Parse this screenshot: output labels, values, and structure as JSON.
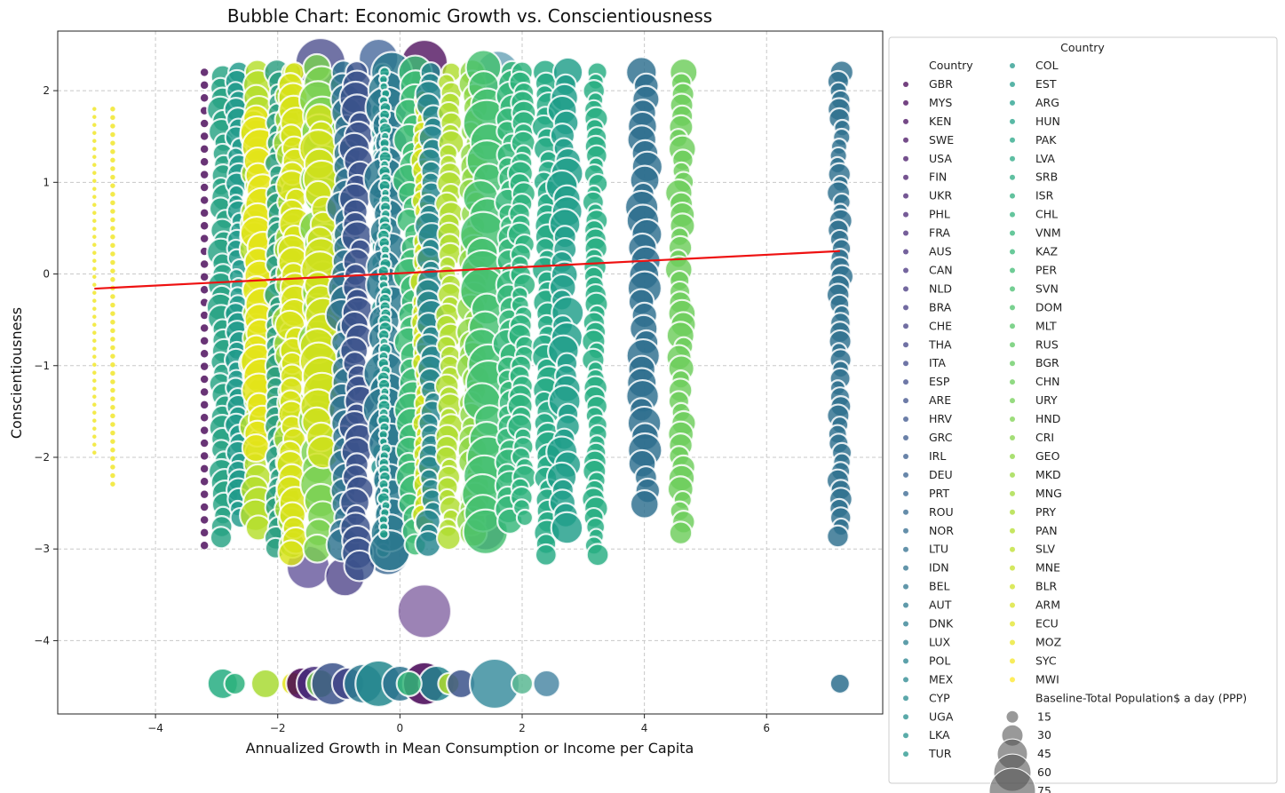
{
  "chart_data": {
    "type": "scatter",
    "title": "Bubble Chart: Economic Growth vs. Conscientiousness",
    "xlabel": "Annualized Growth in Mean Consumption or Income per Capita",
    "ylabel": "Conscientiousness",
    "xlim": [
      -5.6,
      7.9
    ],
    "ylim": [
      -4.8,
      2.65
    ],
    "xticks": [
      -4,
      -2,
      0,
      2,
      4,
      6
    ],
    "yticks": [
      -4,
      -3,
      -2,
      -1,
      0,
      1,
      2
    ],
    "grid": true,
    "colormap": "viridis",
    "trend_line": {
      "color": "#ee1111",
      "x": [
        -5.0,
        7.2
      ],
      "y": [
        -0.16,
        0.25
      ]
    },
    "legend": {
      "title": "Country",
      "placement": "outside-right",
      "hue_title": "Country",
      "countries": [
        "GBR",
        "MYS",
        "KEN",
        "SWE",
        "USA",
        "FIN",
        "UKR",
        "PHL",
        "FRA",
        "AUS",
        "CAN",
        "NLD",
        "BRA",
        "CHE",
        "THA",
        "ITA",
        "ESP",
        "ARE",
        "HRV",
        "GRC",
        "IRL",
        "DEU",
        "PRT",
        "ROU",
        "NOR",
        "LTU",
        "IDN",
        "BEL",
        "AUT",
        "DNK",
        "LUX",
        "POL",
        "MEX",
        "CYP",
        "UGA",
        "LKA",
        "TUR",
        "COL",
        "EST",
        "ARG",
        "HUN",
        "PAK",
        "LVA",
        "SRB",
        "ISR",
        "CHL",
        "VNM",
        "KAZ",
        "PER",
        "SVN",
        "DOM",
        "MLT",
        "RUS",
        "BGR",
        "CHN",
        "URY",
        "HND",
        "CRI",
        "GEO",
        "MKD",
        "MNG",
        "PRY",
        "PAN",
        "SLV",
        "MNE",
        "BLR",
        "ARM",
        "ECU",
        "MOZ",
        "SYC",
        "MWI"
      ],
      "size_title": "Baseline-Total Population$ a day (PPP)",
      "sizes": [
        "15",
        "30",
        "45",
        "60",
        "75"
      ]
    },
    "bubble_columns": [
      {
        "x": -5.0,
        "color": "#f0e51e",
        "ymin": -1.95,
        "ymax": 1.8,
        "r": 2.5,
        "ring": false
      },
      {
        "x": -4.7,
        "color": "#f0e51e",
        "ymin": -2.35,
        "ymax": 1.8,
        "r": 3,
        "ring": false
      },
      {
        "x": -3.2,
        "color": "#440154",
        "ymin": -3.0,
        "ymax": 2.2,
        "r": 4.5,
        "ring": false
      },
      {
        "x": -2.9,
        "color": "#26a282",
        "ymin": -2.9,
        "ymax": 2.15,
        "r": 13,
        "ring": true
      },
      {
        "x": -2.65,
        "color": "#1f9a8a",
        "ymin": -2.7,
        "ymax": 2.2,
        "r": 11,
        "ring": true
      },
      {
        "x": -2.35,
        "color": "#b5de2b",
        "ymin": -2.8,
        "ymax": 2.2,
        "r": 15,
        "ring": true
      },
      {
        "x": -2.3,
        "color": "#e4e419",
        "ymin": -1.95,
        "ymax": 1.7,
        "r": 17,
        "ring": true
      },
      {
        "x": -2.0,
        "color": "#2a9d7f",
        "ymin": -3.0,
        "ymax": 2.2,
        "r": 12,
        "ring": true
      },
      {
        "x": -1.8,
        "color": "#a8db34",
        "ymin": -3.0,
        "ymax": 2.2,
        "r": 14,
        "ring": true
      },
      {
        "x": -1.75,
        "color": "#d8e219",
        "ymin": -3.1,
        "ymax": 2.2,
        "r": 15,
        "ring": true
      },
      {
        "x": -1.3,
        "color": "#7ad151",
        "ymin": -3.0,
        "ymax": 2.25,
        "r": 19,
        "ring": true
      },
      {
        "x": -1.3,
        "color": "#d0e11c",
        "ymin": -2.0,
        "ymax": 1.7,
        "r": 18,
        "ring": true
      },
      {
        "x": -0.9,
        "color": "#2c728e",
        "ymin": -3.1,
        "ymax": 2.2,
        "r": 16,
        "ring": true
      },
      {
        "x": -0.7,
        "color": "#3b528b",
        "ymin": -3.2,
        "ymax": 2.2,
        "r": 15,
        "ring": true
      },
      {
        "x": -0.3,
        "color": "#21918c",
        "ymin": -3.1,
        "ymax": 2.2,
        "r": 9,
        "ring": true
      },
      {
        "x": -0.2,
        "color": "#2a788e",
        "ymin": -3.05,
        "ymax": 2.2,
        "r": 21,
        "ring": true
      },
      {
        "x": -0.25,
        "color": "#1fa187",
        "ymin": -2.9,
        "ymax": 2.2,
        "r": 6,
        "ring": true
      },
      {
        "x": 0.2,
        "color": "#3dbc74",
        "ymin": -3.0,
        "ymax": 2.2,
        "r": 16,
        "ring": true
      },
      {
        "x": 0.4,
        "color": "#d6e21a",
        "ymin": -2.8,
        "ymax": 1.9,
        "r": 12,
        "ring": true
      },
      {
        "x": 0.5,
        "color": "#25858e",
        "ymin": -3.0,
        "ymax": 2.2,
        "r": 13,
        "ring": true
      },
      {
        "x": 0.8,
        "color": "#b0dd2f",
        "ymin": -2.9,
        "ymax": 2.2,
        "r": 12,
        "ring": true
      },
      {
        "x": 1.2,
        "color": "#8fd744",
        "ymin": -2.9,
        "ymax": 2.2,
        "r": 14,
        "ring": true
      },
      {
        "x": 1.4,
        "color": "#44bf70",
        "ymin": -3.0,
        "ymax": 2.25,
        "r": 22,
        "ring": true
      },
      {
        "x": 1.8,
        "color": "#35b779",
        "ymin": -2.8,
        "ymax": 2.2,
        "r": 14,
        "ring": true
      },
      {
        "x": 2.0,
        "color": "#2db27d",
        "ymin": -2.7,
        "ymax": 2.2,
        "r": 12,
        "ring": true
      },
      {
        "x": 2.4,
        "color": "#23a983",
        "ymin": -3.1,
        "ymax": 2.2,
        "r": 13,
        "ring": true
      },
      {
        "x": 2.7,
        "color": "#1f9e89",
        "ymin": -2.9,
        "ymax": 2.2,
        "r": 15,
        "ring": true
      },
      {
        "x": 3.2,
        "color": "#26ad81",
        "ymin": -3.1,
        "ymax": 2.2,
        "r": 11,
        "ring": true
      },
      {
        "x": 4.0,
        "color": "#2c6e8e",
        "ymin": -2.6,
        "ymax": 2.2,
        "r": 16,
        "ring": true
      },
      {
        "x": 4.6,
        "color": "#6ccd5a",
        "ymin": -2.85,
        "ymax": 2.2,
        "r": 13,
        "ring": true
      },
      {
        "x": 7.2,
        "color": "#2d6f8e",
        "ymin": -2.95,
        "ymax": 2.2,
        "r": 11,
        "ring": true
      }
    ],
    "big_bubbles": [
      {
        "x": 0.4,
        "y": -3.68,
        "r": 30,
        "color": "#7b5a9c"
      },
      {
        "x": -1.5,
        "y": -3.2,
        "r": 24,
        "color": "#5a4a94"
      },
      {
        "x": -0.9,
        "y": -3.3,
        "r": 22,
        "color": "#443983"
      },
      {
        "x": 0.4,
        "y": 2.3,
        "r": 26,
        "color": "#440154"
      },
      {
        "x": -1.3,
        "y": 2.3,
        "r": 28,
        "color": "#414487"
      },
      {
        "x": -0.35,
        "y": 2.35,
        "r": 22,
        "color": "#3b5f95"
      },
      {
        "x": 1.6,
        "y": 2.2,
        "r": 24,
        "color": "#5b9bb0"
      },
      {
        "x": 1.4,
        "y": -2.8,
        "r": 22,
        "color": "#4a3f8a"
      },
      {
        "x": -0.2,
        "y": -3.05,
        "r": 24,
        "color": "#2b5c8a"
      }
    ],
    "bottom_row": {
      "y": -4.47,
      "items": [
        {
          "x": -2.9,
          "r": 17,
          "color": "#26ad81"
        },
        {
          "x": -2.7,
          "r": 12,
          "color": "#2db27d"
        },
        {
          "x": -2.2,
          "r": 16,
          "color": "#a8db34"
        },
        {
          "x": -1.75,
          "r": 13,
          "color": "#e4e419"
        },
        {
          "x": -1.6,
          "r": 18,
          "color": "#440154"
        },
        {
          "x": -1.4,
          "r": 20,
          "color": "#472d7b"
        },
        {
          "x": -1.3,
          "r": 16,
          "color": "#7ad151"
        },
        {
          "x": -1.1,
          "r": 24,
          "color": "#3b528b"
        },
        {
          "x": -0.85,
          "r": 18,
          "color": "#414487"
        },
        {
          "x": -0.6,
          "r": 22,
          "color": "#2a788e"
        },
        {
          "x": -0.35,
          "r": 26,
          "color": "#23888e"
        },
        {
          "x": 0.0,
          "r": 20,
          "color": "#2c728e"
        },
        {
          "x": 0.4,
          "r": 24,
          "color": "#440154"
        },
        {
          "x": 0.6,
          "r": 20,
          "color": "#25858e"
        },
        {
          "x": 0.15,
          "r": 14,
          "color": "#35b779"
        },
        {
          "x": 0.8,
          "r": 12,
          "color": "#b0dd2f"
        },
        {
          "x": 1.0,
          "r": 16,
          "color": "#3b528b"
        },
        {
          "x": 1.55,
          "r": 28,
          "color": "#3d8fa0"
        },
        {
          "x": 2.0,
          "r": 12,
          "color": "#5ab893"
        },
        {
          "x": 2.4,
          "r": 15,
          "color": "#4d8aa6"
        },
        {
          "x": 7.2,
          "r": 11,
          "color": "#2d6f8e"
        }
      ]
    }
  }
}
